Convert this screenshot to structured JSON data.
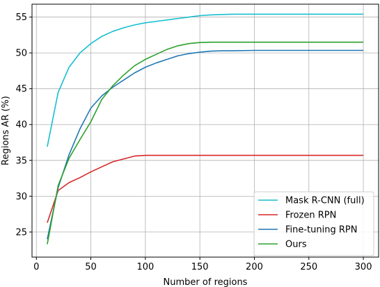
{
  "chart_data": {
    "type": "line",
    "title": "",
    "xlabel": "Number of regions",
    "ylabel": "Regions AR (%)",
    "xlim": [
      -4,
      314
    ],
    "ylim": [
      21.5,
      56.8
    ],
    "xticks": [
      0,
      50,
      100,
      150,
      200,
      250,
      300
    ],
    "yticks": [
      25,
      30,
      35,
      40,
      45,
      50,
      55
    ],
    "grid": true,
    "legend_position": "lower-right",
    "series": [
      {
        "name": "Mask R-CNN (full)",
        "color": "#17becf",
        "x": [
          10,
          20,
          30,
          40,
          50,
          60,
          70,
          80,
          90,
          100,
          110,
          120,
          130,
          140,
          150,
          160,
          170,
          180,
          190,
          200,
          250,
          300
        ],
        "y": [
          36.9,
          44.5,
          48.0,
          50.0,
          51.3,
          52.3,
          53.0,
          53.5,
          53.9,
          54.2,
          54.4,
          54.6,
          54.8,
          55.0,
          55.2,
          55.3,
          55.35,
          55.4,
          55.4,
          55.4,
          55.4,
          55.4
        ]
      },
      {
        "name": "Frozen RPN",
        "color": "#d62728",
        "x": [
          10,
          20,
          30,
          40,
          50,
          60,
          70,
          80,
          90,
          100,
          110,
          120,
          150,
          200,
          250,
          300
        ],
        "y": [
          26.3,
          30.8,
          31.9,
          32.6,
          33.4,
          34.1,
          34.8,
          35.2,
          35.6,
          35.7,
          35.7,
          35.7,
          35.7,
          35.7,
          35.7,
          35.7
        ]
      },
      {
        "name": "Fine-tuning RPN",
        "color": "#1f77b4",
        "x": [
          10,
          20,
          30,
          40,
          50,
          60,
          70,
          80,
          90,
          100,
          110,
          120,
          130,
          140,
          150,
          160,
          170,
          180,
          200,
          250,
          300
        ],
        "y": [
          24.0,
          31.2,
          35.8,
          39.4,
          42.3,
          44.0,
          45.2,
          46.2,
          47.2,
          48.0,
          48.6,
          49.1,
          49.6,
          49.9,
          50.1,
          50.25,
          50.3,
          50.3,
          50.35,
          50.35,
          50.35
        ]
      },
      {
        "name": "Ours",
        "color": "#2ca02c",
        "x": [
          10,
          20,
          30,
          40,
          50,
          60,
          70,
          80,
          90,
          100,
          110,
          120,
          130,
          140,
          150,
          160,
          170,
          180,
          200,
          250,
          300
        ],
        "y": [
          23.3,
          31.5,
          35.3,
          37.9,
          40.4,
          43.5,
          45.4,
          46.9,
          48.2,
          49.1,
          49.8,
          50.5,
          51.0,
          51.3,
          51.45,
          51.5,
          51.5,
          51.5,
          51.5,
          51.5,
          51.5
        ]
      }
    ]
  }
}
